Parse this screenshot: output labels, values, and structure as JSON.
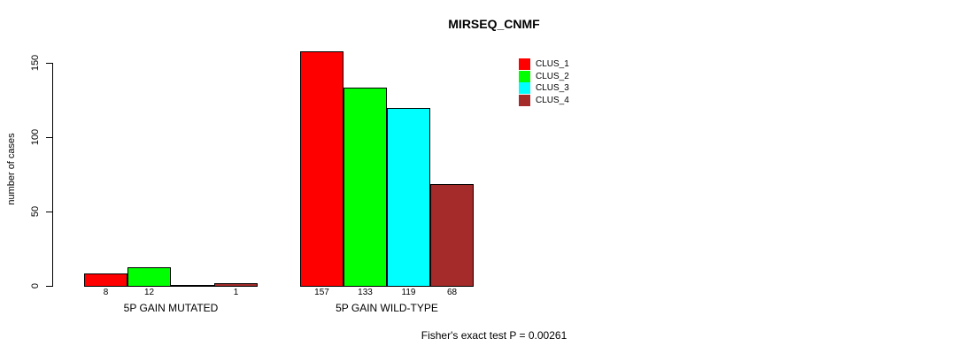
{
  "chart": {
    "title": "MIRSEQ_CNMF",
    "ylabel": "number of cases",
    "caption": "Fisher's exact test P = 0.00261"
  },
  "chart_data": {
    "type": "bar",
    "title": "MIRSEQ_CNMF",
    "xlabel": "",
    "ylabel": "number of cases",
    "caption": "Fisher's exact test P = 0.00261",
    "categories": [
      "5P GAIN MUTATED",
      "5P GAIN WILD-TYPE"
    ],
    "series": [
      {
        "name": "CLUS_1",
        "color": "#FF0000",
        "values": [
          8,
          157
        ]
      },
      {
        "name": "CLUS_2",
        "color": "#00FF00",
        "values": [
          12,
          133
        ]
      },
      {
        "name": "CLUS_3",
        "color": "#00FFFF",
        "values": [
          0,
          119
        ]
      },
      {
        "name": "CLUS_4",
        "color": "#A52A2A",
        "values": [
          1,
          68
        ]
      }
    ],
    "bar_labels": [
      [
        "8",
        "12",
        "",
        "1"
      ],
      [
        "157",
        "133",
        "119",
        "68"
      ]
    ],
    "yticks": [
      0,
      50,
      100,
      150
    ],
    "ylim": [
      0,
      150
    ],
    "grid": false,
    "legend_position": "top-right",
    "legend_entries": [
      "CLUS_1",
      "CLUS_2",
      "CLUS_3",
      "CLUS_4"
    ],
    "axis_color": "#000000",
    "bar_border_color": "#000000",
    "background_color": "#FFFFFF"
  }
}
